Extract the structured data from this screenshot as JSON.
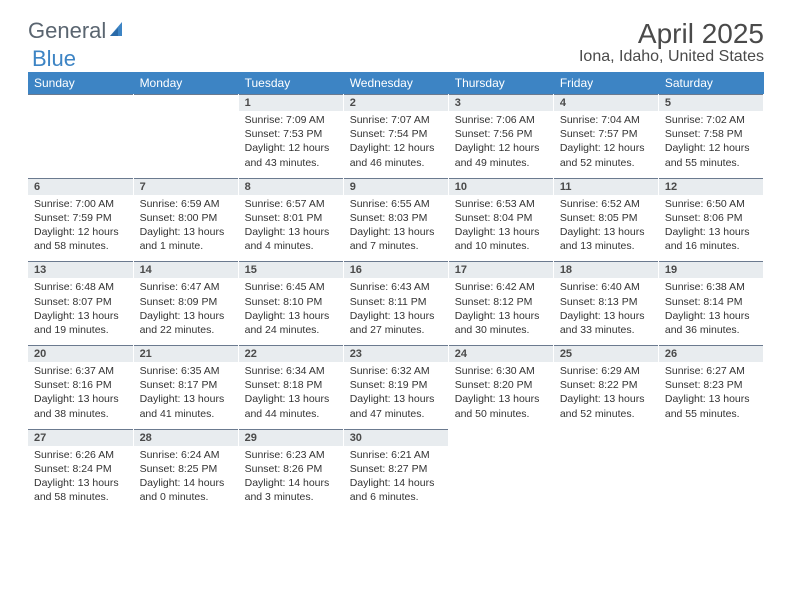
{
  "logo": {
    "part1": "General",
    "part2": "Blue"
  },
  "title": "April 2025",
  "location": "Iona, Idaho, United States",
  "colors": {
    "header_bg": "#3d84c4",
    "header_text": "#ffffff",
    "daynum_bg": "#e8ecef",
    "daynum_border": "#6b7a8f",
    "text": "#333333",
    "logo_gray": "#5a6570",
    "logo_blue": "#3d84c4",
    "page_bg": "#ffffff"
  },
  "typography": {
    "title_fontsize": 28,
    "location_fontsize": 16,
    "header_fontsize": 12,
    "daynum_fontsize": 11,
    "body_fontsize": 10.5
  },
  "weekdays": [
    "Sunday",
    "Monday",
    "Tuesday",
    "Wednesday",
    "Thursday",
    "Friday",
    "Saturday"
  ],
  "days": {
    "1": {
      "sunrise": "7:09 AM",
      "sunset": "7:53 PM",
      "daylight": "12 hours and 43 minutes."
    },
    "2": {
      "sunrise": "7:07 AM",
      "sunset": "7:54 PM",
      "daylight": "12 hours and 46 minutes."
    },
    "3": {
      "sunrise": "7:06 AM",
      "sunset": "7:56 PM",
      "daylight": "12 hours and 49 minutes."
    },
    "4": {
      "sunrise": "7:04 AM",
      "sunset": "7:57 PM",
      "daylight": "12 hours and 52 minutes."
    },
    "5": {
      "sunrise": "7:02 AM",
      "sunset": "7:58 PM",
      "daylight": "12 hours and 55 minutes."
    },
    "6": {
      "sunrise": "7:00 AM",
      "sunset": "7:59 PM",
      "daylight": "12 hours and 58 minutes."
    },
    "7": {
      "sunrise": "6:59 AM",
      "sunset": "8:00 PM",
      "daylight": "13 hours and 1 minute."
    },
    "8": {
      "sunrise": "6:57 AM",
      "sunset": "8:01 PM",
      "daylight": "13 hours and 4 minutes."
    },
    "9": {
      "sunrise": "6:55 AM",
      "sunset": "8:03 PM",
      "daylight": "13 hours and 7 minutes."
    },
    "10": {
      "sunrise": "6:53 AM",
      "sunset": "8:04 PM",
      "daylight": "13 hours and 10 minutes."
    },
    "11": {
      "sunrise": "6:52 AM",
      "sunset": "8:05 PM",
      "daylight": "13 hours and 13 minutes."
    },
    "12": {
      "sunrise": "6:50 AM",
      "sunset": "8:06 PM",
      "daylight": "13 hours and 16 minutes."
    },
    "13": {
      "sunrise": "6:48 AM",
      "sunset": "8:07 PM",
      "daylight": "13 hours and 19 minutes."
    },
    "14": {
      "sunrise": "6:47 AM",
      "sunset": "8:09 PM",
      "daylight": "13 hours and 22 minutes."
    },
    "15": {
      "sunrise": "6:45 AM",
      "sunset": "8:10 PM",
      "daylight": "13 hours and 24 minutes."
    },
    "16": {
      "sunrise": "6:43 AM",
      "sunset": "8:11 PM",
      "daylight": "13 hours and 27 minutes."
    },
    "17": {
      "sunrise": "6:42 AM",
      "sunset": "8:12 PM",
      "daylight": "13 hours and 30 minutes."
    },
    "18": {
      "sunrise": "6:40 AM",
      "sunset": "8:13 PM",
      "daylight": "13 hours and 33 minutes."
    },
    "19": {
      "sunrise": "6:38 AM",
      "sunset": "8:14 PM",
      "daylight": "13 hours and 36 minutes."
    },
    "20": {
      "sunrise": "6:37 AM",
      "sunset": "8:16 PM",
      "daylight": "13 hours and 38 minutes."
    },
    "21": {
      "sunrise": "6:35 AM",
      "sunset": "8:17 PM",
      "daylight": "13 hours and 41 minutes."
    },
    "22": {
      "sunrise": "6:34 AM",
      "sunset": "8:18 PM",
      "daylight": "13 hours and 44 minutes."
    },
    "23": {
      "sunrise": "6:32 AM",
      "sunset": "8:19 PM",
      "daylight": "13 hours and 47 minutes."
    },
    "24": {
      "sunrise": "6:30 AM",
      "sunset": "8:20 PM",
      "daylight": "13 hours and 50 minutes."
    },
    "25": {
      "sunrise": "6:29 AM",
      "sunset": "8:22 PM",
      "daylight": "13 hours and 52 minutes."
    },
    "26": {
      "sunrise": "6:27 AM",
      "sunset": "8:23 PM",
      "daylight": "13 hours and 55 minutes."
    },
    "27": {
      "sunrise": "6:26 AM",
      "sunset": "8:24 PM",
      "daylight": "13 hours and 58 minutes."
    },
    "28": {
      "sunrise": "6:24 AM",
      "sunset": "8:25 PM",
      "daylight": "14 hours and 0 minutes."
    },
    "29": {
      "sunrise": "6:23 AM",
      "sunset": "8:26 PM",
      "daylight": "14 hours and 3 minutes."
    },
    "30": {
      "sunrise": "6:21 AM",
      "sunset": "8:27 PM",
      "daylight": "14 hours and 6 minutes."
    }
  },
  "layout": {
    "first_weekday_index": 2,
    "num_days": 30,
    "rows": 5,
    "cols": 7
  },
  "labels": {
    "sunrise_prefix": "Sunrise: ",
    "sunset_prefix": "Sunset: ",
    "daylight_prefix": "Daylight: "
  }
}
